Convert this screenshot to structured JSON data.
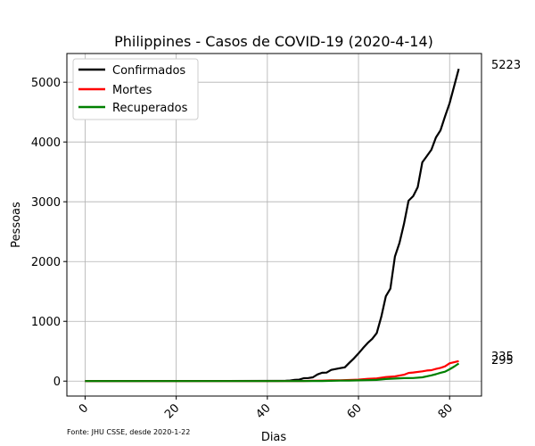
{
  "chart_data": {
    "type": "line",
    "title": "Philippines - Casos de COVID-19 (2020-4-14)",
    "xlabel": "Dias",
    "ylabel": "Pessoas",
    "xlim": [
      -4,
      87
    ],
    "ylim": [
      -250,
      5480
    ],
    "xticks": [
      0,
      20,
      40,
      60,
      80
    ],
    "yticks": [
      0,
      1000,
      2000,
      3000,
      4000,
      5000
    ],
    "grid": true,
    "legend_position": "top-left",
    "source": "Fonte: JHU CSSE, desde 2020-1-22",
    "end_labels": [
      "5223",
      "335",
      "295"
    ],
    "series": [
      {
        "name": "Confirmados",
        "color": "#000000",
        "points": [
          [
            0,
            0
          ],
          [
            42,
            3
          ],
          [
            44,
            5
          ],
          [
            45,
            10
          ],
          [
            46,
            20
          ],
          [
            47,
            24
          ],
          [
            48,
            49
          ],
          [
            49,
            52
          ],
          [
            50,
            64
          ],
          [
            51,
            111
          ],
          [
            52,
            140
          ],
          [
            53,
            142
          ],
          [
            54,
            187
          ],
          [
            55,
            202
          ],
          [
            56,
            217
          ],
          [
            57,
            230
          ],
          [
            58,
            307
          ],
          [
            59,
            380
          ],
          [
            60,
            462
          ],
          [
            61,
            552
          ],
          [
            62,
            636
          ],
          [
            63,
            707
          ],
          [
            64,
            803
          ],
          [
            65,
            1075
          ],
          [
            66,
            1418
          ],
          [
            67,
            1546
          ],
          [
            68,
            2084
          ],
          [
            69,
            2311
          ],
          [
            70,
            2633
          ],
          [
            71,
            3018
          ],
          [
            72,
            3094
          ],
          [
            73,
            3246
          ],
          [
            74,
            3660
          ],
          [
            75,
            3764
          ],
          [
            76,
            3870
          ],
          [
            77,
            4076
          ],
          [
            78,
            4195
          ],
          [
            79,
            4428
          ],
          [
            80,
            4648
          ],
          [
            81,
            4932
          ],
          [
            82,
            5223
          ]
        ]
      },
      {
        "name": "Mortes",
        "color": "#ff0000",
        "points": [
          [
            0,
            0
          ],
          [
            40,
            1
          ],
          [
            48,
            2
          ],
          [
            50,
            5
          ],
          [
            52,
            8
          ],
          [
            54,
            12
          ],
          [
            56,
            14
          ],
          [
            58,
            19
          ],
          [
            60,
            25
          ],
          [
            62,
            38
          ],
          [
            64,
            45
          ],
          [
            66,
            68
          ],
          [
            68,
            78
          ],
          [
            70,
            107
          ],
          [
            71,
            136
          ],
          [
            72,
            144
          ],
          [
            74,
            163
          ],
          [
            75,
            177
          ],
          [
            76,
            182
          ],
          [
            77,
            203
          ],
          [
            78,
            221
          ],
          [
            79,
            247
          ],
          [
            80,
            297
          ],
          [
            82,
            335
          ]
        ]
      },
      {
        "name": "Recuperados",
        "color": "#008000",
        "points": [
          [
            0,
            0
          ],
          [
            44,
            1
          ],
          [
            52,
            2
          ],
          [
            56,
            8
          ],
          [
            58,
            10
          ],
          [
            60,
            13
          ],
          [
            62,
            16
          ],
          [
            64,
            20
          ],
          [
            66,
            35
          ],
          [
            68,
            42
          ],
          [
            70,
            50
          ],
          [
            72,
            52
          ],
          [
            74,
            64
          ],
          [
            76,
            96
          ],
          [
            77,
            115
          ],
          [
            78,
            140
          ],
          [
            79,
            157
          ],
          [
            80,
            197
          ],
          [
            81,
            242
          ],
          [
            82,
            295
          ]
        ]
      }
    ]
  }
}
